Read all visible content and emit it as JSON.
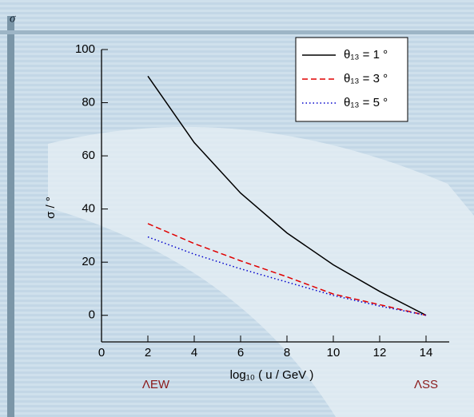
{
  "chart_data": {
    "type": "line",
    "title": "σ",
    "x_label": "log₁₀ ( u / GeV )",
    "y_label": "σ / °",
    "annotations": [
      "ΛEW",
      "ΛSS"
    ],
    "x": [
      2,
      4,
      6,
      8,
      10,
      12,
      14
    ],
    "series": [
      {
        "name": "θ₁₃ = 1 °",
        "color": "#000000",
        "style": "solid",
        "values": [
          90,
          65,
          46,
          31,
          19,
          9,
          0
        ]
      },
      {
        "name": "θ₁₃ = 3 °",
        "color": "#e00000",
        "style": "dashed",
        "values": [
          34.5,
          27,
          20.5,
          14.5,
          8,
          4,
          0
        ]
      },
      {
        "name": "θ₁₃ = 5 °",
        "color": "#0000cc",
        "style": "dotted",
        "values": [
          29.5,
          23,
          17.5,
          12.5,
          7.5,
          3.5,
          0
        ]
      }
    ],
    "xlim": [
      0,
      15
    ],
    "xticks": [
      0,
      2,
      4,
      6,
      8,
      10,
      12,
      14
    ],
    "ylim": [
      -10,
      100
    ],
    "yticks": [
      0,
      20,
      40,
      60,
      80,
      100
    ],
    "legend": "upper right"
  }
}
